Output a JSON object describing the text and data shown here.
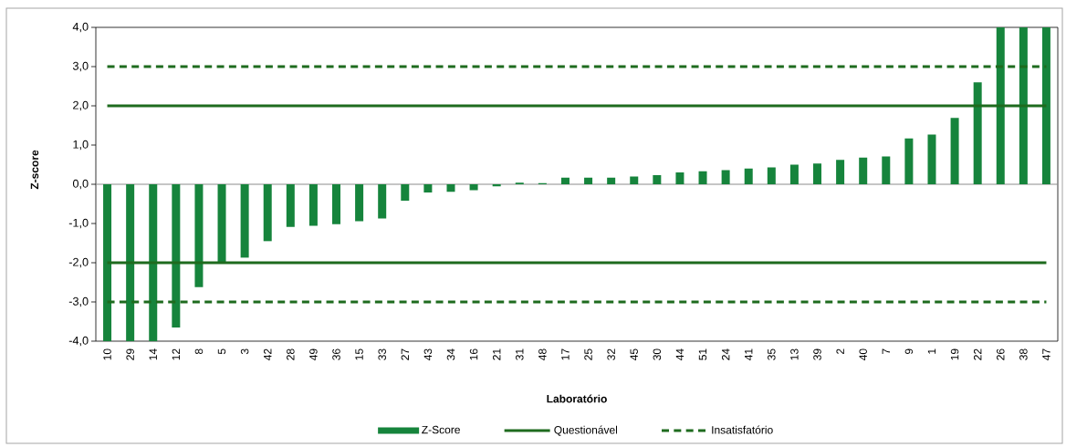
{
  "chart_data": {
    "type": "bar",
    "xlabel": "Laboratório",
    "ylabel": "Z-score",
    "categories": [
      "10",
      "29",
      "14",
      "12",
      "8",
      "5",
      "3",
      "42",
      "28",
      "49",
      "36",
      "15",
      "33",
      "27",
      "43",
      "34",
      "16",
      "21",
      "31",
      "48",
      "17",
      "25",
      "32",
      "45",
      "30",
      "44",
      "51",
      "24",
      "41",
      "35",
      "13",
      "39",
      "2",
      "40",
      "7",
      "9",
      "1",
      "19",
      "22",
      "26",
      "38",
      "47"
    ],
    "series": [
      {
        "name": "Z-Score",
        "color": "#16843c",
        "values": [
          -4,
          -4,
          -4,
          -3.65,
          -2.62,
          -2.02,
          -1.87,
          -1.45,
          -1.09,
          -1.06,
          -1.02,
          -0.94,
          -0.87,
          -0.42,
          -0.21,
          -0.19,
          -0.15,
          -0.05,
          0.04,
          0.03,
          0.17,
          0.17,
          0.17,
          0.2,
          0.23,
          0.3,
          0.33,
          0.36,
          0.4,
          0.43,
          0.5,
          0.53,
          0.62,
          0.68,
          0.71,
          1.17,
          1.27,
          1.69,
          2.6,
          4,
          4,
          4
        ]
      }
    ],
    "ylim": [
      -4,
      4
    ],
    "yticks": [
      {
        "value": -4,
        "label": "-4,0"
      },
      {
        "value": -3,
        "label": "-3,0"
      },
      {
        "value": -2,
        "label": "-2,0"
      },
      {
        "value": -1,
        "label": "-1,0"
      },
      {
        "value": 0,
        "label": "0,0"
      },
      {
        "value": 1,
        "label": "1,0"
      },
      {
        "value": 2,
        "label": "2,0"
      },
      {
        "value": 3,
        "label": "3,0"
      },
      {
        "value": 4,
        "label": "4,0"
      }
    ],
    "ref_lines": [
      {
        "axis": "y",
        "value": 2,
        "label": "Questionável",
        "color": "#1e6b1e",
        "line_style": "solid"
      },
      {
        "axis": "y",
        "value": -2,
        "color": "#1e6b1e",
        "line_style": "solid"
      },
      {
        "axis": "y",
        "value": 3,
        "label": "Insatisfatório",
        "color": "#1e6b1e",
        "line_style": "dashed"
      },
      {
        "axis": "y",
        "value": -3,
        "color": "#1e6b1e",
        "line_style": "dashed"
      }
    ],
    "legend": "bottom"
  }
}
